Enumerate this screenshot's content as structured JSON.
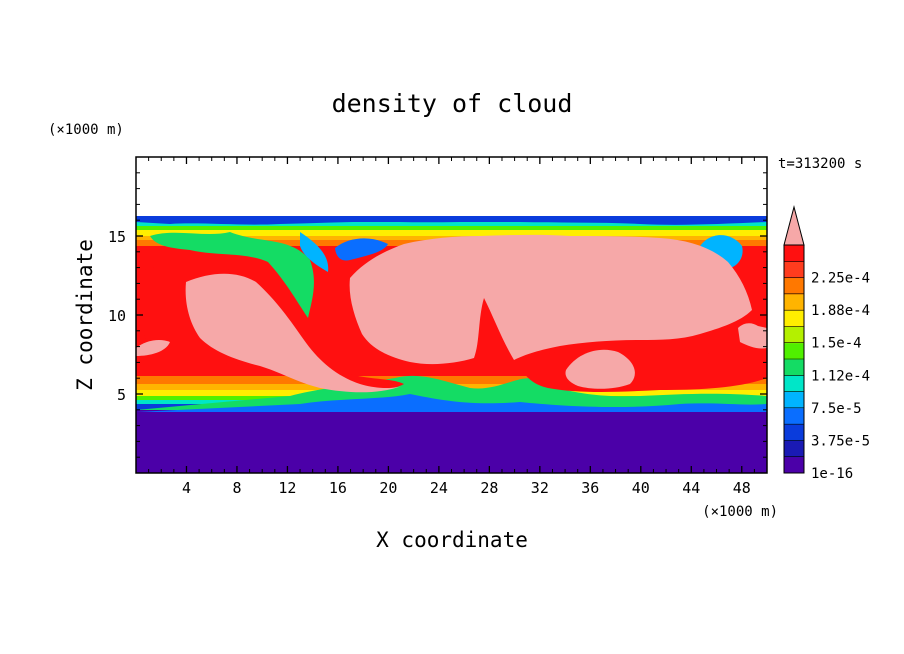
{
  "chart_data": {
    "type": "heatmap",
    "title": "density of cloud",
    "xlabel": "X coordinate",
    "ylabel": "Z coordinate",
    "x_unit": "(×1000 m)",
    "y_unit": "(×1000 m)",
    "time_label": "t=313200 s",
    "xlim": [
      0,
      50
    ],
    "ylim": [
      0,
      20
    ],
    "x_ticks": [
      4,
      8,
      12,
      16,
      20,
      24,
      28,
      32,
      36,
      40,
      44,
      48
    ],
    "y_ticks": [
      5,
      10,
      15
    ],
    "colorbar": {
      "labels": [
        "1e-16",
        "3.75e-5",
        "7.5e-5",
        "1.12e-4",
        "1.5e-4",
        "1.88e-4",
        "2.25e-4"
      ],
      "levels": [
        1e-16,
        1.875e-05,
        3.75e-05,
        5.625e-05,
        7.5e-05,
        9.375e-05,
        0.0001125,
        0.00013125,
        0.00015,
        0.00016875,
        0.0001875,
        0.00020625,
        0.000225,
        0.00024375
      ],
      "colors": [
        "#4b00a8",
        "#1a1ab4",
        "#0a3cdc",
        "#0a6eff",
        "#00b4ff",
        "#00e6c8",
        "#14dc64",
        "#50f000",
        "#b4f000",
        "#ffee00",
        "#ffb400",
        "#ff7800",
        "#ff3c1e",
        "#ff1010"
      ],
      "extend_color": "#f6a8a8",
      "extend": "max"
    },
    "layers": {
      "below_cloud_value": 1e-16,
      "cloud_base_z": 4.0,
      "cloud_top_z": 16.0,
      "above_cloud": "blank"
    }
  }
}
